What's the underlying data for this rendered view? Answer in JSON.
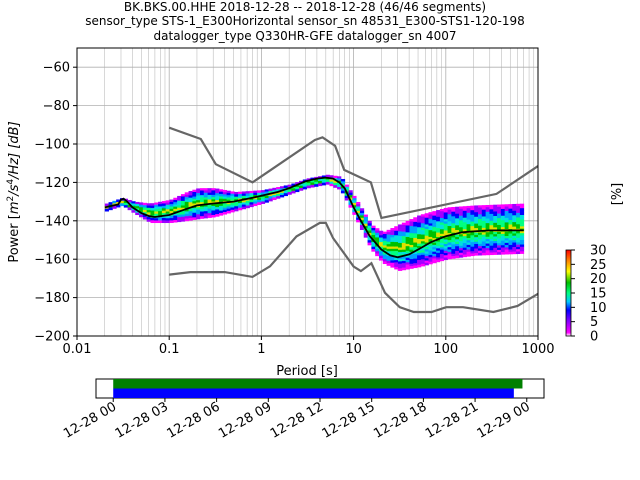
{
  "title": {
    "line1": "BK.BKS.00.HHE   2018-12-28 -- 2018-12-28  (46/46 segments)",
    "line2": "sensor_type STS-1_E300Horizontal sensor_sn 48531_E300-STS1-120-198",
    "line3": "datalogger_type Q330HR-GFE datalogger_sn 4007"
  },
  "chart_data": [
    {
      "type": "heatmap",
      "xlabel": "Period [s]",
      "ylabel": "Power [m²/s⁴/Hz] [dB]",
      "ylabel_parts": {
        "main": "Power [",
        "m": "m",
        "sup2": "2",
        "slash_s": "/s",
        "sup4": "4",
        "tail": "/Hz] [dB]"
      },
      "xscale": "log",
      "xlim": [
        0.01,
        1000
      ],
      "ylim": [
        -200,
        -50
      ],
      "x_ticks": [
        {
          "value": 0.01,
          "label": "0.01"
        },
        {
          "value": 0.1,
          "label": "0.1"
        },
        {
          "value": 1,
          "label": "1"
        },
        {
          "value": 10,
          "label": "10"
        },
        {
          "value": 100,
          "label": "100"
        },
        {
          "value": 1000,
          "label": "1000"
        }
      ],
      "y_ticks": [
        -60,
        -80,
        -100,
        -120,
        -140,
        -160,
        -180,
        -200
      ],
      "grid": true,
      "noise_models": {
        "color": "#666666",
        "high": [
          [
            0.1,
            -91.5
          ],
          [
            0.22,
            -97.4
          ],
          [
            0.32,
            -110.5
          ],
          [
            0.8,
            -120
          ],
          [
            3.8,
            -97.9
          ],
          [
            4.6,
            -96.5
          ],
          [
            6.3,
            -101
          ],
          [
            7.9,
            -113.5
          ],
          [
            15.4,
            -120
          ],
          [
            20,
            -138.5
          ],
          [
            354.8,
            -126
          ],
          [
            1000,
            -111.5
          ]
        ],
        "low": [
          [
            0.1,
            -168
          ],
          [
            0.17,
            -166.7
          ],
          [
            0.4,
            -166.7
          ],
          [
            0.8,
            -169.2
          ],
          [
            1.24,
            -163.7
          ],
          [
            2.4,
            -148.1
          ],
          [
            4.3,
            -141.1
          ],
          [
            5,
            -141.1
          ],
          [
            6,
            -149
          ],
          [
            10,
            -163.8
          ],
          [
            12,
            -166.2
          ],
          [
            15.6,
            -162.1
          ],
          [
            21.9,
            -177.5
          ],
          [
            31.6,
            -185
          ],
          [
            45,
            -187.5
          ],
          [
            70,
            -187.5
          ],
          [
            101,
            -185
          ],
          [
            154,
            -185
          ],
          [
            328,
            -187.5
          ],
          [
            600,
            -184.4
          ],
          [
            1000,
            -178
          ]
        ]
      },
      "mean_curve": {
        "color": "#000000",
        "points": [
          [
            0.02,
            -133
          ],
          [
            0.025,
            -132
          ],
          [
            0.028,
            -131.5
          ],
          [
            0.03,
            -129
          ],
          [
            0.032,
            -128.5
          ],
          [
            0.035,
            -130
          ],
          [
            0.04,
            -133
          ],
          [
            0.05,
            -136
          ],
          [
            0.06,
            -137.5
          ],
          [
            0.07,
            -138
          ],
          [
            0.1,
            -137
          ],
          [
            0.15,
            -134
          ],
          [
            0.2,
            -132
          ],
          [
            0.3,
            -131
          ],
          [
            0.5,
            -130
          ],
          [
            0.8,
            -128
          ],
          [
            1,
            -127
          ],
          [
            1.5,
            -125
          ],
          [
            2,
            -123
          ],
          [
            3,
            -119.5
          ],
          [
            4,
            -118
          ],
          [
            5,
            -117.5
          ],
          [
            6,
            -118
          ],
          [
            7,
            -120
          ],
          [
            8,
            -123
          ],
          [
            10,
            -133
          ],
          [
            12,
            -140
          ],
          [
            15,
            -148
          ],
          [
            20,
            -155
          ],
          [
            25,
            -158
          ],
          [
            30,
            -159
          ],
          [
            40,
            -157.5
          ],
          [
            50,
            -155
          ],
          [
            70,
            -151
          ],
          [
            100,
            -148
          ],
          [
            150,
            -146
          ],
          [
            200,
            -145.5
          ],
          [
            300,
            -145
          ],
          [
            500,
            -145
          ],
          [
            700,
            -145
          ]
        ]
      },
      "density_band": [
        [
          0.02,
          -131,
          -135
        ],
        [
          0.03,
          -128,
          -132
        ],
        [
          0.04,
          -130,
          -136
        ],
        [
          0.06,
          -131,
          -141
        ],
        [
          0.1,
          -129,
          -141
        ],
        [
          0.15,
          -125,
          -140
        ],
        [
          0.2,
          -123,
          -139
        ],
        [
          0.3,
          -123,
          -138
        ],
        [
          0.5,
          -125,
          -135
        ],
        [
          1,
          -124,
          -131
        ],
        [
          2,
          -121,
          -126
        ],
        [
          3,
          -118,
          -123
        ],
        [
          5,
          -116,
          -121
        ],
        [
          7,
          -117,
          -124
        ],
        [
          10,
          -128,
          -138
        ],
        [
          15,
          -142,
          -155
        ],
        [
          20,
          -146,
          -162
        ],
        [
          30,
          -142,
          -166
        ],
        [
          50,
          -137,
          -164
        ],
        [
          100,
          -133,
          -160
        ],
        [
          200,
          -132,
          -158
        ],
        [
          700,
          -131,
          -157
        ]
      ],
      "colorbar": {
        "label": "[%]",
        "range": [
          0,
          30
        ],
        "ticks": [
          0,
          5,
          10,
          15,
          20,
          25,
          30
        ],
        "colormap": "pqlx"
      }
    },
    {
      "type": "timeline",
      "x_tick_labels": [
        "12-28 00",
        "12-28 03",
        "12-28 06",
        "12-28 09",
        "12-28 12",
        "12-28 15",
        "12-28 18",
        "12-28 21",
        "12-29 00"
      ],
      "x_range_hours": [
        -1,
        25
      ],
      "bars": [
        {
          "color": "#008000",
          "start_hour": 0,
          "end_hour": 23.75
        },
        {
          "color": "#0000ff",
          "start_hour": 0,
          "end_hour": 23.25
        }
      ]
    }
  ]
}
